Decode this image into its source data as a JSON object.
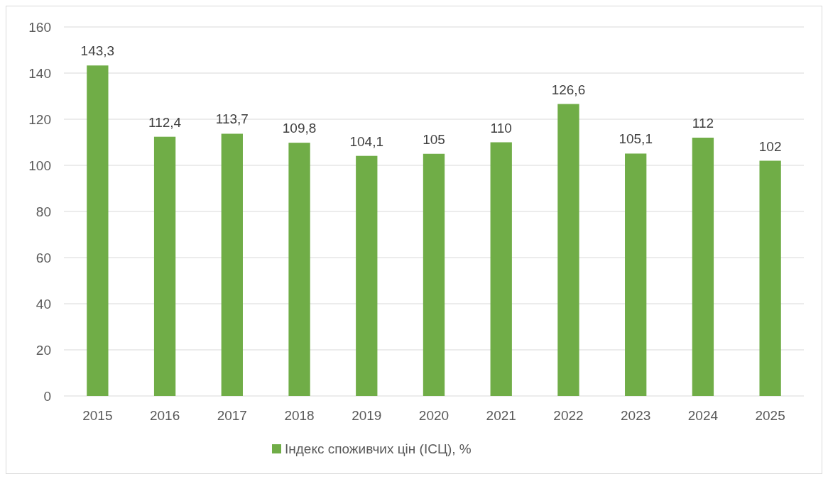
{
  "chart_data": {
    "type": "bar",
    "categories": [
      "2015",
      "2016",
      "2017",
      "2018",
      "2019",
      "2020",
      "2021",
      "2022",
      "2023",
      "2024",
      "2025"
    ],
    "series": [
      {
        "name": "Індекс споживчих цін (ІСЦ), %",
        "color": "#70ad47",
        "values": [
          143.3,
          112.4,
          113.7,
          109.8,
          104.1,
          105,
          110,
          126.6,
          105.1,
          112,
          102
        ],
        "value_labels": [
          "143,3",
          "112,4",
          "113,7",
          "109,8",
          "104,1",
          "105",
          "110",
          "126,6",
          "105,1",
          "112",
          "102"
        ]
      }
    ],
    "ylim": [
      0,
      160
    ],
    "yticks": [
      0,
      20,
      40,
      60,
      80,
      100,
      120,
      140,
      160
    ],
    "grid": "y",
    "legend": "bottom"
  }
}
